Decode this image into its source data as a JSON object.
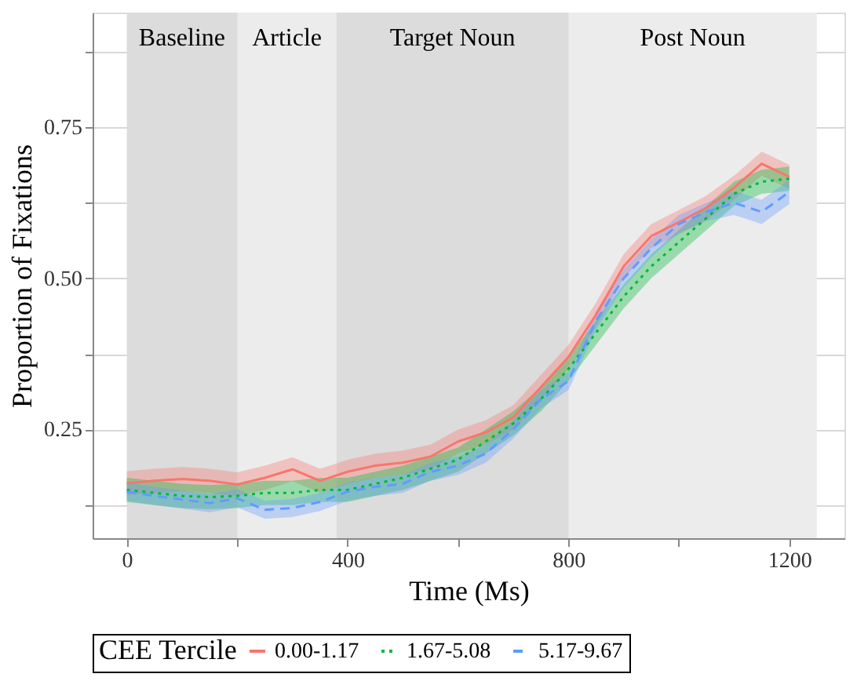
{
  "chart_data": {
    "type": "line",
    "xlabel": "Time (Ms)",
    "ylabel": "Proportion of Fixations",
    "legend_title": "CEE Tercile",
    "x": [
      0,
      50,
      100,
      150,
      200,
      250,
      300,
      350,
      400,
      450,
      500,
      550,
      600,
      650,
      700,
      750,
      800,
      850,
      900,
      950,
      1000,
      1050,
      1100,
      1150,
      1200
    ],
    "series": [
      {
        "name": "0.00-1.17",
        "color": "#f8766d",
        "line_style": "solid",
        "values": [
          0.161,
          0.165,
          0.168,
          0.165,
          0.159,
          0.17,
          0.184,
          0.165,
          0.18,
          0.19,
          0.195,
          0.205,
          0.23,
          0.245,
          0.27,
          0.32,
          0.37,
          0.44,
          0.52,
          0.57,
          0.593,
          0.617,
          0.65,
          0.69,
          0.668
        ],
        "lower": [
          0.141,
          0.145,
          0.148,
          0.145,
          0.139,
          0.15,
          0.164,
          0.145,
          0.16,
          0.17,
          0.175,
          0.185,
          0.21,
          0.225,
          0.25,
          0.3,
          0.35,
          0.42,
          0.5,
          0.55,
          0.573,
          0.597,
          0.63,
          0.67,
          0.648
        ],
        "upper": [
          0.181,
          0.185,
          0.188,
          0.185,
          0.179,
          0.19,
          0.204,
          0.185,
          0.2,
          0.21,
          0.215,
          0.225,
          0.25,
          0.265,
          0.29,
          0.34,
          0.39,
          0.46,
          0.54,
          0.59,
          0.613,
          0.637,
          0.67,
          0.71,
          0.688
        ]
      },
      {
        "name": "1.67-5.08",
        "color": "#00ba38",
        "line_style": "dotted",
        "values": [
          0.15,
          0.145,
          0.14,
          0.138,
          0.14,
          0.145,
          0.145,
          0.15,
          0.15,
          0.16,
          0.17,
          0.185,
          0.2,
          0.23,
          0.26,
          0.3,
          0.35,
          0.41,
          0.47,
          0.52,
          0.56,
          0.6,
          0.64,
          0.66,
          0.665
        ],
        "lower": [
          0.13,
          0.125,
          0.12,
          0.118,
          0.12,
          0.125,
          0.125,
          0.13,
          0.13,
          0.14,
          0.15,
          0.165,
          0.18,
          0.21,
          0.24,
          0.28,
          0.33,
          0.39,
          0.45,
          0.5,
          0.54,
          0.58,
          0.62,
          0.64,
          0.645
        ],
        "upper": [
          0.17,
          0.165,
          0.16,
          0.158,
          0.16,
          0.165,
          0.165,
          0.17,
          0.17,
          0.18,
          0.19,
          0.205,
          0.22,
          0.25,
          0.28,
          0.32,
          0.37,
          0.43,
          0.49,
          0.54,
          0.58,
          0.62,
          0.66,
          0.68,
          0.685
        ]
      },
      {
        "name": "5.17-9.67",
        "color": "#619cff",
        "line_style": "dashed",
        "values": [
          0.147,
          0.14,
          0.134,
          0.128,
          0.136,
          0.117,
          0.12,
          0.13,
          0.147,
          0.155,
          0.16,
          0.18,
          0.19,
          0.21,
          0.25,
          0.3,
          0.33,
          0.43,
          0.5,
          0.55,
          0.59,
          0.61,
          0.625,
          0.61,
          0.643
        ],
        "lower": [
          0.132,
          0.125,
          0.119,
          0.113,
          0.121,
          0.102,
          0.105,
          0.115,
          0.132,
          0.14,
          0.145,
          0.165,
          0.175,
          0.195,
          0.235,
          0.285,
          0.315,
          0.415,
          0.485,
          0.535,
          0.575,
          0.595,
          0.605,
          0.59,
          0.623
        ],
        "upper": [
          0.162,
          0.155,
          0.149,
          0.143,
          0.151,
          0.132,
          0.135,
          0.145,
          0.162,
          0.17,
          0.175,
          0.195,
          0.205,
          0.225,
          0.265,
          0.315,
          0.345,
          0.445,
          0.515,
          0.565,
          0.605,
          0.625,
          0.645,
          0.63,
          0.663
        ]
      }
    ],
    "bands": [
      {
        "axis": "x",
        "from": 0,
        "to": 200,
        "label": "Baseline",
        "color": "#dcdcdc"
      },
      {
        "axis": "x",
        "from": 200,
        "to": 380,
        "label": "Article",
        "color": "#ececec"
      },
      {
        "axis": "x",
        "from": 380,
        "to": 800,
        "label": "Target Noun",
        "color": "#dcdcdc"
      },
      {
        "axis": "x",
        "from": 800,
        "to": 1250,
        "label": "Post Noun",
        "color": "#ececec"
      }
    ],
    "xlim": [
      -62,
      1300
    ],
    "ylim": [
      0.07,
      0.94
    ],
    "xticks": [
      0,
      {
        "value": 200,
        "label": null
      },
      400,
      {
        "value": 600,
        "label": null
      },
      800,
      {
        "value": 1000,
        "label": null
      },
      1200
    ],
    "yticks": [
      {
        "value": 0.125,
        "label": null
      },
      {
        "value": 0.25,
        "label": "0.25"
      },
      {
        "value": 0.375,
        "label": null
      },
      {
        "value": 0.5,
        "label": "0.50"
      },
      {
        "value": 0.625,
        "label": null
      },
      {
        "value": 0.75,
        "label": "0.75"
      },
      {
        "value": 0.875,
        "label": null
      }
    ],
    "grid": true,
    "legend": "bottom"
  }
}
